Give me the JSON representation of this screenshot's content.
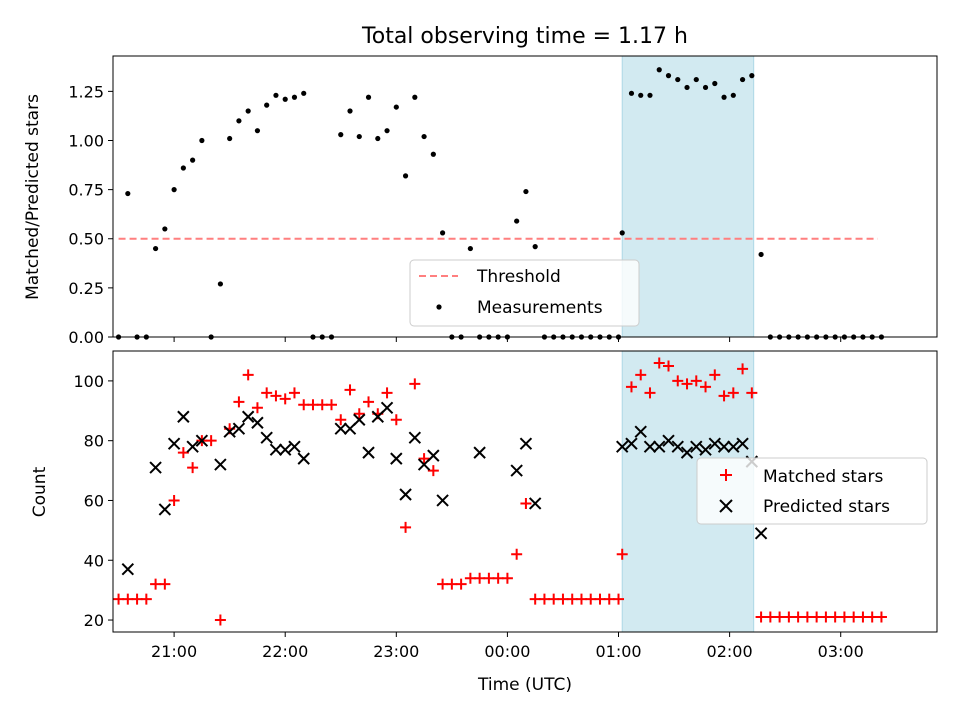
{
  "chart_data": [
    {
      "type": "scatter",
      "title": "Total observing time = 1.17 h",
      "xlabel": "",
      "ylabel": "Matched/Predicted stars",
      "x_unit": "Time (UTC)",
      "xlim": [
        "20:27",
        "03:52"
      ],
      "ylim": [
        0,
        1.43
      ],
      "y_ticks": [
        "0.00",
        "0.25",
        "0.50",
        "0.75",
        "1.00",
        "1.25"
      ],
      "grid": false,
      "legend_position": "lower-center",
      "highlight_band": {
        "start": "01:02",
        "end": "02:13",
        "color": "#add8e6"
      },
      "threshold": {
        "name": "Threshold",
        "value": 0.5,
        "x_range": [
          "20:30",
          "03:20"
        ],
        "color": "#ff7f7f",
        "style": "dashed"
      },
      "series": [
        {
          "name": "Measurements",
          "marker": "dot",
          "color": "#000000",
          "points": [
            [
              "20:30",
              0
            ],
            [
              "20:35",
              0.73
            ],
            [
              "20:40",
              0
            ],
            [
              "20:45",
              0
            ],
            [
              "20:50",
              0.45
            ],
            [
              "20:55",
              0.55
            ],
            [
              "21:00",
              0.75
            ],
            [
              "21:05",
              0.86
            ],
            [
              "21:10",
              0.9
            ],
            [
              "21:15",
              1.0
            ],
            [
              "21:20",
              0
            ],
            [
              "21:25",
              0.27
            ],
            [
              "21:30",
              1.01
            ],
            [
              "21:35",
              1.1
            ],
            [
              "21:40",
              1.15
            ],
            [
              "21:45",
              1.05
            ],
            [
              "21:50",
              1.18
            ],
            [
              "21:55",
              1.23
            ],
            [
              "22:00",
              1.21
            ],
            [
              "22:05",
              1.22
            ],
            [
              "22:10",
              1.24
            ],
            [
              "22:15",
              0
            ],
            [
              "22:20",
              0
            ],
            [
              "22:25",
              0
            ],
            [
              "22:30",
              1.03
            ],
            [
              "22:35",
              1.15
            ],
            [
              "22:40",
              1.02
            ],
            [
              "22:45",
              1.22
            ],
            [
              "22:50",
              1.01
            ],
            [
              "22:55",
              1.05
            ],
            [
              "23:00",
              1.17
            ],
            [
              "23:05",
              0.82
            ],
            [
              "23:10",
              1.22
            ],
            [
              "23:15",
              1.02
            ],
            [
              "23:20",
              0.93
            ],
            [
              "23:25",
              0.53
            ],
            [
              "23:30",
              0
            ],
            [
              "23:35",
              0
            ],
            [
              "23:40",
              0.45
            ],
            [
              "23:45",
              0
            ],
            [
              "23:50",
              0
            ],
            [
              "23:55",
              0
            ],
            [
              "00:00",
              0
            ],
            [
              "00:05",
              0.59
            ],
            [
              "00:10",
              0.74
            ],
            [
              "00:15",
              0.46
            ],
            [
              "00:20",
              0
            ],
            [
              "00:25",
              0
            ],
            [
              "00:30",
              0
            ],
            [
              "00:35",
              0
            ],
            [
              "00:40",
              0
            ],
            [
              "00:45",
              0
            ],
            [
              "00:50",
              0
            ],
            [
              "00:55",
              0
            ],
            [
              "01:00",
              0
            ],
            [
              "01:02",
              0.53
            ],
            [
              "01:07",
              1.24
            ],
            [
              "01:12",
              1.23
            ],
            [
              "01:17",
              1.23
            ],
            [
              "01:22",
              1.36
            ],
            [
              "01:27",
              1.33
            ],
            [
              "01:32",
              1.31
            ],
            [
              "01:37",
              1.27
            ],
            [
              "01:42",
              1.31
            ],
            [
              "01:47",
              1.27
            ],
            [
              "01:52",
              1.29
            ],
            [
              "01:57",
              1.22
            ],
            [
              "02:02",
              1.23
            ],
            [
              "02:07",
              1.31
            ],
            [
              "02:12",
              1.33
            ],
            [
              "02:17",
              0.42
            ],
            [
              "02:22",
              0
            ],
            [
              "02:27",
              0
            ],
            [
              "02:32",
              0
            ],
            [
              "02:37",
              0
            ],
            [
              "02:42",
              0
            ],
            [
              "02:47",
              0
            ],
            [
              "02:52",
              0
            ],
            [
              "02:57",
              0
            ],
            [
              "03:02",
              0
            ],
            [
              "03:07",
              0
            ],
            [
              "03:12",
              0
            ],
            [
              "03:17",
              0
            ],
            [
              "03:22",
              0
            ]
          ]
        }
      ]
    },
    {
      "type": "scatter",
      "title": "",
      "xlabel": "Time (UTC)",
      "ylabel": "Count",
      "xlim": [
        "20:27",
        "03:52"
      ],
      "ylim": [
        16,
        110
      ],
      "x_ticks": [
        "21:00",
        "22:00",
        "23:00",
        "00:00",
        "01:00",
        "02:00",
        "03:00"
      ],
      "y_ticks": [
        "20",
        "40",
        "60",
        "80",
        "100"
      ],
      "grid": false,
      "legend_position": "center-right",
      "highlight_band": {
        "start": "01:02",
        "end": "02:13",
        "color": "#add8e6"
      },
      "series": [
        {
          "name": "Matched stars",
          "marker": "plus",
          "color": "#ff0000",
          "points": [
            [
              "20:30",
              27
            ],
            [
              "20:35",
              27
            ],
            [
              "20:40",
              27
            ],
            [
              "20:45",
              27
            ],
            [
              "20:50",
              32
            ],
            [
              "20:55",
              32
            ],
            [
              "21:00",
              60
            ],
            [
              "21:05",
              76
            ],
            [
              "21:10",
              71
            ],
            [
              "21:15",
              80
            ],
            [
              "21:20",
              80
            ],
            [
              "21:25",
              20
            ],
            [
              "21:30",
              84
            ],
            [
              "21:35",
              93
            ],
            [
              "21:40",
              102
            ],
            [
              "21:45",
              91
            ],
            [
              "21:50",
              96
            ],
            [
              "21:55",
              95
            ],
            [
              "22:00",
              94
            ],
            [
              "22:05",
              96
            ],
            [
              "22:10",
              92
            ],
            [
              "22:15",
              92
            ],
            [
              "22:20",
              92
            ],
            [
              "22:25",
              92
            ],
            [
              "22:30",
              87
            ],
            [
              "22:35",
              97
            ],
            [
              "22:40",
              89
            ],
            [
              "22:45",
              93
            ],
            [
              "22:50",
              89
            ],
            [
              "22:55",
              96
            ],
            [
              "23:00",
              87
            ],
            [
              "23:05",
              51
            ],
            [
              "23:10",
              99
            ],
            [
              "23:15",
              74
            ],
            [
              "23:20",
              70
            ],
            [
              "23:25",
              32
            ],
            [
              "23:30",
              32
            ],
            [
              "23:35",
              32
            ],
            [
              "23:40",
              34
            ],
            [
              "23:45",
              34
            ],
            [
              "23:50",
              34
            ],
            [
              "23:55",
              34
            ],
            [
              "00:00",
              34
            ],
            [
              "00:05",
              42
            ],
            [
              "00:10",
              59
            ],
            [
              "00:15",
              27
            ],
            [
              "00:20",
              27
            ],
            [
              "00:25",
              27
            ],
            [
              "00:30",
              27
            ],
            [
              "00:35",
              27
            ],
            [
              "00:40",
              27
            ],
            [
              "00:45",
              27
            ],
            [
              "00:50",
              27
            ],
            [
              "00:55",
              27
            ],
            [
              "01:00",
              27
            ],
            [
              "01:02",
              42
            ],
            [
              "01:07",
              98
            ],
            [
              "01:12",
              102
            ],
            [
              "01:17",
              96
            ],
            [
              "01:22",
              106
            ],
            [
              "01:27",
              105
            ],
            [
              "01:32",
              100
            ],
            [
              "01:37",
              99
            ],
            [
              "01:42",
              100
            ],
            [
              "01:47",
              98
            ],
            [
              "01:52",
              102
            ],
            [
              "01:57",
              95
            ],
            [
              "02:02",
              96
            ],
            [
              "02:07",
              104
            ],
            [
              "02:12",
              96
            ],
            [
              "02:17",
              21
            ],
            [
              "02:22",
              21
            ],
            [
              "02:27",
              21
            ],
            [
              "02:32",
              21
            ],
            [
              "02:37",
              21
            ],
            [
              "02:42",
              21
            ],
            [
              "02:47",
              21
            ],
            [
              "02:52",
              21
            ],
            [
              "02:57",
              21
            ],
            [
              "03:02",
              21
            ],
            [
              "03:07",
              21
            ],
            [
              "03:12",
              21
            ],
            [
              "03:17",
              21
            ],
            [
              "03:22",
              21
            ]
          ]
        },
        {
          "name": "Predicted stars",
          "marker": "x",
          "color": "#000000",
          "points": [
            [
              "20:35",
              37
            ],
            [
              "20:50",
              71
            ],
            [
              "20:55",
              57
            ],
            [
              "21:00",
              79
            ],
            [
              "21:05",
              88
            ],
            [
              "21:10",
              78
            ],
            [
              "21:15",
              80
            ],
            [
              "21:25",
              72
            ],
            [
              "21:30",
              83
            ],
            [
              "21:35",
              84
            ],
            [
              "21:40",
              88
            ],
            [
              "21:45",
              86
            ],
            [
              "21:50",
              81
            ],
            [
              "21:55",
              77
            ],
            [
              "22:00",
              77
            ],
            [
              "22:05",
              78
            ],
            [
              "22:10",
              74
            ],
            [
              "22:30",
              84
            ],
            [
              "22:35",
              84
            ],
            [
              "22:40",
              87
            ],
            [
              "22:45",
              76
            ],
            [
              "22:50",
              88
            ],
            [
              "22:55",
              91
            ],
            [
              "23:00",
              74
            ],
            [
              "23:05",
              62
            ],
            [
              "23:10",
              81
            ],
            [
              "23:15",
              72
            ],
            [
              "23:20",
              75
            ],
            [
              "23:25",
              60
            ],
            [
              "23:45",
              76
            ],
            [
              "00:05",
              70
            ],
            [
              "00:10",
              79
            ],
            [
              "00:15",
              59
            ],
            [
              "01:02",
              78
            ],
            [
              "01:07",
              79
            ],
            [
              "01:12",
              83
            ],
            [
              "01:17",
              78
            ],
            [
              "01:22",
              78
            ],
            [
              "01:27",
              80
            ],
            [
              "01:32",
              78
            ],
            [
              "01:37",
              76
            ],
            [
              "01:42",
              78
            ],
            [
              "01:47",
              77
            ],
            [
              "01:52",
              79
            ],
            [
              "01:57",
              78
            ],
            [
              "02:02",
              78
            ],
            [
              "02:07",
              79
            ],
            [
              "02:12",
              73
            ],
            [
              "02:17",
              49
            ]
          ]
        }
      ]
    }
  ]
}
